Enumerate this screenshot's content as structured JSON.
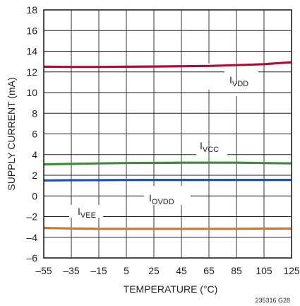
{
  "chart_data": {
    "type": "line",
    "title": "",
    "xlabel": "TEMPERATURE (°C)",
    "ylabel": "SUPPLY CURRENT (mA)",
    "xlim": [
      -55,
      125
    ],
    "ylim": [
      -6,
      18
    ],
    "x_ticks": [
      -55,
      -35,
      -15,
      5,
      25,
      45,
      65,
      85,
      105,
      125
    ],
    "y_ticks": [
      -6,
      -4,
      -2,
      0,
      2,
      4,
      6,
      8,
      10,
      12,
      14,
      16,
      18
    ],
    "x_tick_labels": [
      "–55",
      "–35",
      "–15",
      "5",
      "25",
      "45",
      "65",
      "85",
      "105",
      "125"
    ],
    "y_tick_labels": [
      "–6",
      "–4",
      "–2",
      "0",
      "2",
      "4",
      "6",
      "8",
      "10",
      "12",
      "14",
      "16",
      "18"
    ],
    "grid": true,
    "figure_id": "235316 G28",
    "series": [
      {
        "name": "I",
        "subscript": "VDD",
        "color": "#a3123a",
        "x": [
          -55,
          -35,
          -15,
          5,
          25,
          45,
          65,
          85,
          105,
          125
        ],
        "y": [
          12.5,
          12.48,
          12.48,
          12.5,
          12.52,
          12.55,
          12.58,
          12.65,
          12.75,
          12.93
        ]
      },
      {
        "name": "I",
        "subscript": "VCC",
        "color": "#3d8a3a",
        "x": [
          -55,
          -35,
          -15,
          5,
          25,
          45,
          65,
          85,
          105,
          125
        ],
        "y": [
          3.05,
          3.1,
          3.15,
          3.18,
          3.2,
          3.22,
          3.22,
          3.22,
          3.18,
          3.15
        ]
      },
      {
        "name": "I",
        "subscript": "OVDD",
        "color": "#2a4fa0",
        "x": [
          -55,
          -35,
          -15,
          5,
          25,
          45,
          65,
          85,
          105,
          125
        ],
        "y": [
          1.5,
          1.52,
          1.53,
          1.54,
          1.55,
          1.55,
          1.55,
          1.55,
          1.55,
          1.55
        ]
      },
      {
        "name": "I",
        "subscript": "VEE",
        "color": "#c07a3a",
        "x": [
          -55,
          -35,
          -15,
          5,
          25,
          45,
          65,
          85,
          105,
          125
        ],
        "y": [
          -3.1,
          -3.15,
          -3.18,
          -3.18,
          -3.18,
          -3.18,
          -3.18,
          -3.18,
          -3.16,
          -3.15
        ]
      }
    ]
  }
}
